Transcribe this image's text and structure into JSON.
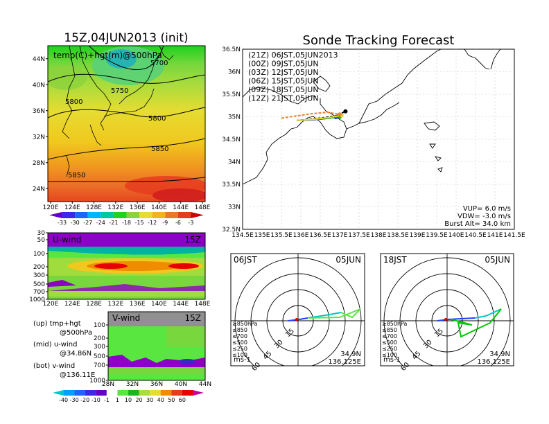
{
  "left": {
    "title": "15Z,04JUN2013 (init)",
    "map_label": "temp(C)+hgt(m)@500hPa",
    "lon_ticks": [
      "120E",
      "124E",
      "128E",
      "132E",
      "136E",
      "140E",
      "144E",
      "148E"
    ],
    "lat_ticks": [
      "44N",
      "40N",
      "36N",
      "32N",
      "28N",
      "24N"
    ],
    "contour_labels": [
      "5700",
      "5750",
      "5800",
      "5800",
      "5850",
      "5850"
    ],
    "temp_colorbar": [
      "-33",
      "-30",
      "-27",
      "-24",
      "-21",
      "-18",
      "-15",
      "-12",
      "-9",
      "-6",
      "-3"
    ],
    "uwind_title": "U-wind",
    "uwind_time": "15Z",
    "pressure_ticks": [
      "30",
      "50",
      "100",
      "200",
      "300",
      "500",
      "700",
      "1000"
    ],
    "vwind_title": "V-wind",
    "vwind_time": "15Z",
    "vwind_lat_ticks": [
      "28N",
      "32N",
      "36N",
      "40N",
      "44N"
    ],
    "vwind_pressure_ticks": [
      "100",
      "200",
      "300",
      "500",
      "700",
      "1000"
    ],
    "notes": [
      "(up) tmp+hgt",
      "@500hPa",
      "(mid) u-wind",
      "@34.86N",
      "(bot) v-wind",
      "@136.11E"
    ],
    "wind_colorbar": [
      "-40",
      "-30",
      "-20",
      "-10",
      "-1",
      "1",
      "10",
      "20",
      "30",
      "40",
      "50",
      "60"
    ],
    "colors": {
      "purple": "#8c00c8",
      "red": "#e60000",
      "green": "#5ae640",
      "orange": "#f08c00"
    }
  },
  "right": {
    "title": "Sonde Tracking Forecast",
    "lat_ticks": [
      "36.5N",
      "36N",
      "35.5N",
      "35N",
      "34.5N",
      "34N",
      "33.5N",
      "33N",
      "32.5N"
    ],
    "lon_ticks": [
      "134.5E",
      "135E",
      "135.5E",
      "136E",
      "136.5E",
      "137E",
      "137.5E",
      "138E",
      "138.5E",
      "139E",
      "139.5E",
      "140E",
      "140.5E",
      "141E",
      "141.5E"
    ],
    "legend": [
      {
        "label": "(21Z)  06JST,05JUN2013",
        "color": "#000000"
      },
      {
        "label": "(00Z)  09JST,05JUN",
        "color": "#a000c8"
      },
      {
        "label": "(03Z)  12JST,05JUN",
        "color": "#1e3cff"
      },
      {
        "label": "(06Z)  15JST,05JUN",
        "color": "#00b400"
      },
      {
        "label": "(09Z)  18JST,05JUN",
        "color": "#e6dc32"
      },
      {
        "label": "(12Z)  21JST,05JUN",
        "color": "#f08228"
      }
    ],
    "params": [
      "VUP=  6.0  m/s",
      "VDW= -3.0  m/s",
      "Burst Alt=  34.0  km"
    ]
  },
  "hodographs": [
    {
      "time": "06JST",
      "date": "05JUN",
      "ring_labels": [
        "15",
        "30",
        "45",
        "60"
      ],
      "unit": "ms-1",
      "loc1": "34.9N",
      "loc2": "136.125E"
    },
    {
      "time": "18JST",
      "date": "05JUN",
      "ring_labels": [
        "15",
        "30",
        "45",
        "60"
      ],
      "unit": "ms-1",
      "loc1": "34.9N",
      "loc2": "136.125E"
    }
  ],
  "hodo_legend": [
    {
      "label": "≥850hPa",
      "color": "#e60000"
    },
    {
      "label": "≤850",
      "color": "#f08c00"
    },
    {
      "label": "≤700",
      "color": "#e6dc32"
    },
    {
      "label": "≤500",
      "color": "#00c800"
    },
    {
      "label": "≤250",
      "color": "#00c8c8"
    },
    {
      "label": "≤100",
      "color": "#1e3cff"
    }
  ],
  "chart_data": [
    {
      "type": "heatmap",
      "title": "15Z,04JUN2013 (init)",
      "xlabel": "",
      "ylabel": "",
      "x_range": [
        "120E",
        "148E"
      ],
      "y_range": [
        "24N",
        "44N"
      ],
      "colorbar": [
        -33,
        -30,
        -27,
        -24,
        -21,
        -18,
        -15,
        -12,
        -9,
        -6,
        -3
      ],
      "contours": [
        5700,
        5750,
        5800,
        5850
      ]
    },
    {
      "type": "heatmap",
      "title": "U-wind",
      "x_range": [
        "120E",
        "148E"
      ],
      "y_levels": [
        30,
        50,
        100,
        200,
        300,
        500,
        700,
        1000
      ]
    },
    {
      "type": "heatmap",
      "title": "V-wind",
      "x_range": [
        "28N",
        "44N"
      ],
      "y_levels": [
        100,
        200,
        300,
        500,
        700,
        1000
      ],
      "colorbar": [
        -40,
        -30,
        -20,
        -10,
        -1,
        1,
        10,
        20,
        30,
        40,
        50,
        60
      ]
    },
    {
      "type": "line",
      "title": "Sonde Tracking Forecast",
      "x_range": [
        134.5,
        141.5
      ],
      "y_range": [
        32.5,
        36.5
      ],
      "series": [
        {
          "name": "(21Z)  06JST,05JUN2013",
          "x": [
            135.9,
            136.2,
            136.6,
            136.9,
            137.15
          ],
          "y": [
            34.92,
            34.94,
            34.98,
            35.02,
            35.12
          ]
        },
        {
          "name": "(00Z)  09JST,05JUN",
          "x": [
            135.9,
            136.3,
            136.7,
            136.95
          ],
          "y": [
            34.92,
            34.93,
            34.97,
            35.0
          ]
        },
        {
          "name": "(03Z)  12JST,05JUN",
          "x": [
            135.9,
            136.3,
            136.65,
            136.9
          ],
          "y": [
            34.92,
            34.93,
            34.96,
            34.99
          ]
        },
        {
          "name": "(06Z)  15JST,05JUN",
          "x": [
            135.9,
            136.3,
            136.7,
            137.0
          ],
          "y": [
            34.92,
            34.94,
            34.97,
            35.0
          ]
        },
        {
          "name": "(09Z)  18JST,05JUN",
          "x": [
            135.9,
            136.3,
            136.7,
            137.05
          ],
          "y": [
            34.92,
            34.94,
            34.98,
            35.03
          ]
        },
        {
          "name": "(12Z)  21JST,05JUN",
          "x": [
            135.5,
            135.9,
            136.3,
            136.7,
            137.0
          ],
          "y": [
            34.97,
            35.02,
            35.07,
            35.1,
            35.05
          ]
        }
      ]
    }
  ]
}
